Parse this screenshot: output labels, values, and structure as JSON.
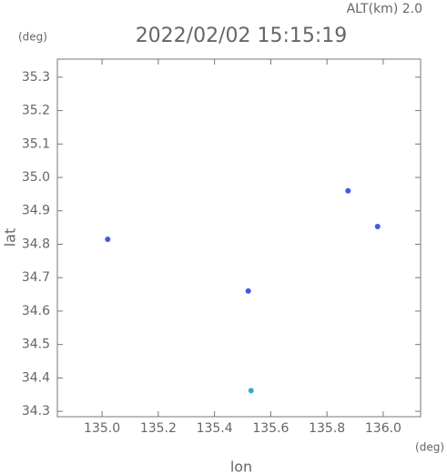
{
  "chart_data": {
    "type": "scatter",
    "title": "2022/02/02 15:15:19",
    "annotation": "ALT(km) 2.0",
    "y_unit": "(deg)",
    "x_unit": "(deg)",
    "xlabel": "lon",
    "ylabel": "lat",
    "xlim": [
      134.841,
      136.133
    ],
    "ylim": [
      34.284,
      35.354
    ],
    "xticks": [
      {
        "value": 135.0,
        "label": "135.0"
      },
      135.2,
      135.4,
      135.6,
      135.8,
      {
        "value": 136.0,
        "label": "136.0"
      }
    ],
    "yticks": [
      34.3,
      34.4,
      34.5,
      34.6,
      34.7,
      34.8,
      34.9,
      {
        "value": 35.0,
        "label": "35.0"
      },
      35.1,
      35.2,
      35.3
    ],
    "series": [
      {
        "color": "#4455ee",
        "x": [
          135.02,
          135.875,
          135.98,
          135.52
        ],
        "values": [
          34.815,
          34.96,
          34.853,
          34.66
        ]
      },
      {
        "color": "#33aacc",
        "x": [
          135.53
        ],
        "values": [
          34.362
        ]
      }
    ]
  }
}
